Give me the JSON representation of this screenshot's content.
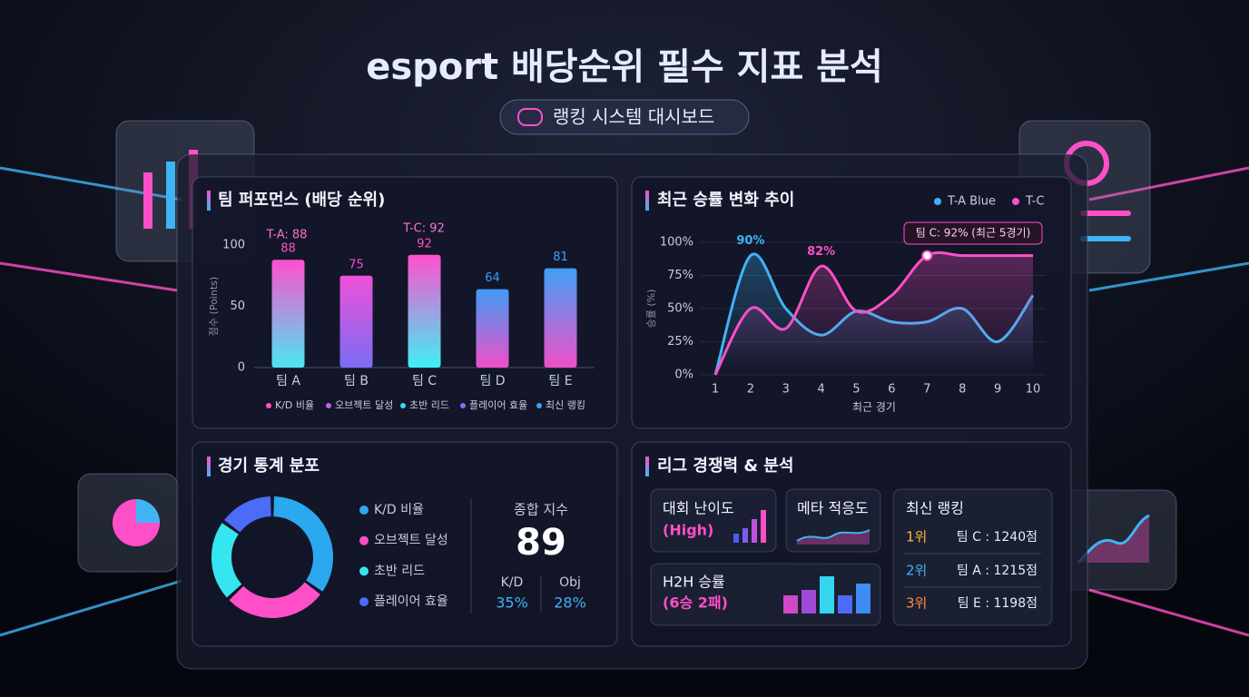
{
  "header": {
    "title": "esport 배당순위 필수 지표 분석",
    "subtitle": "랭킹 시스템 대시보드"
  },
  "chart_data": [
    {
      "type": "bar",
      "title": "팀 퍼포먼스 (배당 순위)",
      "y_label": "점수 (Points)",
      "categories": [
        "팀 A",
        "팀 B",
        "팀 C",
        "팀 D",
        "팀 E"
      ],
      "values": [
        88,
        75,
        92,
        64,
        81
      ],
      "bar_gradients": [
        [
          "#ff4fcf",
          "#4be6f2"
        ],
        [
          "#f050d8",
          "#7a6cf5"
        ],
        [
          "#ff4fcf",
          "#3ff0f5"
        ],
        [
          "#3f9cf5",
          "#f050c8"
        ],
        [
          "#3fa0f5",
          "#f04fc8"
        ]
      ],
      "ylim": [
        0,
        100
      ],
      "yticks": [
        0,
        50,
        100
      ],
      "grid": false,
      "annotations": [
        "T-A: 88",
        "T-C: 92"
      ],
      "legend": [
        {
          "name": "K/D 비율",
          "color": "#ff4fc8"
        },
        {
          "name": "오브젝트 달성",
          "color": "#c85cf0"
        },
        {
          "name": "초반 리드",
          "color": "#35d6f0"
        },
        {
          "name": "플레이어 효율",
          "color": "#8a6cf7"
        },
        {
          "name": "최신 랭킹",
          "color": "#3fa0f5"
        }
      ]
    },
    {
      "type": "line",
      "title": "최근 승률 변화 추이",
      "x_label": "최근 경기",
      "y_label": "승률 (%)",
      "x": [
        1,
        2,
        3,
        4,
        5,
        6,
        7,
        8,
        9,
        10
      ],
      "xlim": [
        1,
        10
      ],
      "xticks": [
        1,
        2,
        3,
        4,
        5,
        6,
        7,
        8,
        9,
        10
      ],
      "ylim": [
        0,
        100
      ],
      "yticks": [
        {
          "value": 0,
          "label": "0%"
        },
        {
          "value": 25,
          "label": "25%"
        },
        {
          "value": 50,
          "label": "50%"
        },
        {
          "value": 75,
          "label": "75%"
        },
        {
          "value": 100,
          "label": "100%"
        }
      ],
      "grid": true,
      "series": [
        {
          "name": "T-A Blue",
          "color": "#3fb4f5",
          "values": [
            0,
            90,
            50,
            30,
            48,
            40,
            40,
            50,
            25,
            60
          ],
          "value_labels": [
            null,
            "90%",
            null,
            null,
            null,
            null,
            null,
            null,
            null,
            null
          ]
        },
        {
          "name": "T-C",
          "color": "#ff4fc8",
          "values": [
            0,
            50,
            35,
            82,
            48,
            60,
            90,
            90,
            90,
            90
          ],
          "value_labels": [
            null,
            null,
            null,
            "82%",
            null,
            null,
            null,
            null,
            null,
            null
          ]
        }
      ],
      "annotations": [
        "팀 C: 92% (최근 5경기)"
      ]
    },
    {
      "type": "donut",
      "title": "경기 통계 분포",
      "categories": [
        "K/D 비율",
        "오브젝트 달성",
        "초반 리드",
        "플레이어 효율"
      ],
      "values": [
        35,
        28,
        22,
        15
      ],
      "colors": [
        "#2aa8f0",
        "#ff4fc8",
        "#35e6f0",
        "#4a6cf7"
      ]
    }
  ],
  "summary": {
    "label": "종합 지수",
    "value": 89,
    "items": [
      {
        "label": "K/D",
        "value": "35%"
      },
      {
        "label": "Obj",
        "value": "28%"
      }
    ]
  },
  "league": {
    "title": "리그 경쟁력 & 분석",
    "cards": [
      {
        "title": "대회 난이도",
        "sub": "(High)"
      },
      {
        "title": "메타 적응도"
      },
      {
        "title": "H2H 승률",
        "sub": "(6승 2패)"
      }
    ],
    "ranking": {
      "title": "최신 랭킹",
      "rows": [
        {
          "rank": "1위",
          "team": "팀 C : 1240점"
        },
        {
          "rank": "2위",
          "team": "팀 A : 1215점"
        },
        {
          "rank": "3위",
          "team": "팀 E : 1198점"
        }
      ]
    }
  }
}
